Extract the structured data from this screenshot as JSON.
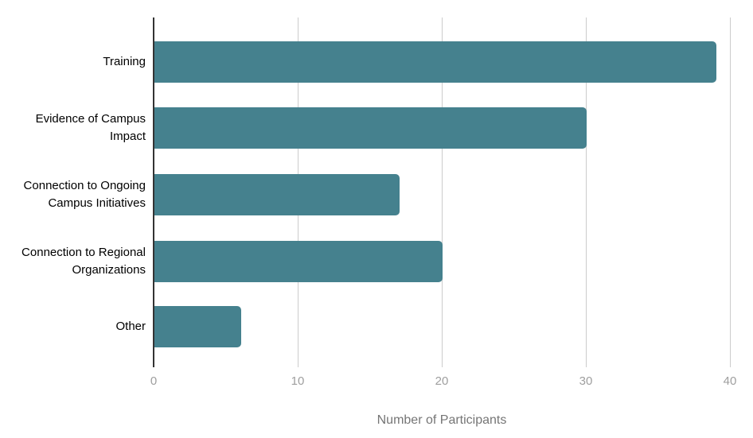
{
  "chart_data": {
    "type": "bar",
    "orientation": "horizontal",
    "title": "",
    "xlabel": "Number of Participants",
    "ylabel": "",
    "categories": [
      "Training",
      "Evidence of Campus Impact",
      "Connection to Ongoing Campus Initiatives",
      "Connection to Regional Organizations",
      "Other"
    ],
    "values": [
      39,
      30,
      17,
      20,
      6
    ],
    "xlim": [
      0,
      40
    ],
    "xticks": [
      0,
      10,
      20,
      30,
      40
    ],
    "xtick_labels": [
      "0",
      "10",
      "20",
      "30",
      "40"
    ],
    "grid": true,
    "legend_position": "none",
    "colors": {
      "bar": "#45818e",
      "gridline": "#cccccc",
      "axis_line": "#333333",
      "tick_label": "#9e9e9e",
      "axis_title": "#757575",
      "category_label": "#000000",
      "background": "#ffffff"
    }
  }
}
